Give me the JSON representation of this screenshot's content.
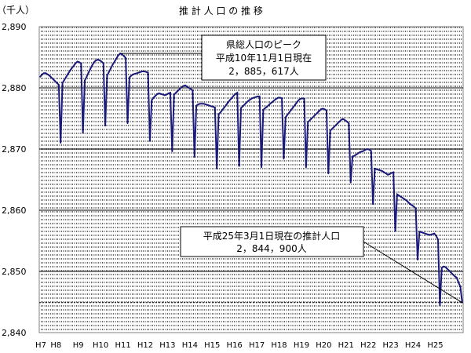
{
  "chart_data": {
    "type": "line",
    "title": "推 計 人 口 の 推 移",
    "ylabel": "（千人）",
    "xlabel": "",
    "ylim": [
      2840,
      2890
    ],
    "yticks": [
      2840,
      2850,
      2860,
      2870,
      2880,
      2890
    ],
    "ytick_labels": [
      "2,840",
      "2,850",
      "2,860",
      "2,870",
      "2,880",
      "2,890"
    ],
    "x_tick_labels": [
      "H7",
      "H8",
      "H9",
      "H10",
      "H11",
      "H12",
      "H13",
      "H14",
      "H15",
      "H16",
      "H17",
      "H18",
      "H19",
      "H20",
      "H21",
      "H22",
      "H23",
      "H24",
      "H25"
    ],
    "grid": true,
    "x_start": "H7-04",
    "x_end": "H25-03",
    "series": [
      {
        "values": [
          2881.8,
          2882.2,
          2882.4,
          2882.4,
          2882.2,
          2882.0,
          2881.7,
          2881.4,
          2881.1,
          2880.8,
          2880.5,
          2871.0,
          2880.8,
          2881.3,
          2881.8,
          2882.3,
          2882.8,
          2883.2,
          2883.6,
          2884.0,
          2884.3,
          2884.2,
          2884.0,
          2872.7,
          2881.2,
          2881.8,
          2882.5,
          2883.1,
          2883.7,
          2884.2,
          2884.5,
          2884.6,
          2884.5,
          2884.3,
          2884.0,
          2873.8,
          2882.0,
          2882.6,
          2883.2,
          2883.8,
          2884.3,
          2884.8,
          2885.3,
          2885.617,
          2885.5,
          2885.2,
          2884.9,
          2874.2,
          2881.7,
          2882.0,
          2882.2,
          2882.3,
          2882.4,
          2882.5,
          2882.6,
          2882.7,
          2882.7,
          2882.6,
          2882.5,
          2871.3,
          2878.0,
          2878.4,
          2878.7,
          2879.0,
          2879.1,
          2879.0,
          2878.9,
          2878.8,
          2878.9,
          2879.1,
          2879.2,
          2869.6,
          2878.9,
          2879.2,
          2879.5,
          2879.8,
          2880.1,
          2880.3,
          2880.4,
          2880.2,
          2880.0,
          2879.8,
          2879.6,
          2868.7,
          2877.1,
          2877.3,
          2877.4,
          2877.4,
          2877.4,
          2877.3,
          2877.2,
          2877.1,
          2877.0,
          2876.9,
          2876.8,
          2866.8,
          2875.7,
          2876.0,
          2876.4,
          2876.8,
          2877.2,
          2877.6,
          2878.0,
          2878.3,
          2878.7,
          2879.0,
          2879.2,
          2867.2,
          2876.7,
          2877.0,
          2877.3,
          2877.6,
          2877.9,
          2878.1,
          2878.3,
          2878.4,
          2878.5,
          2878.6,
          2878.6,
          2867.0,
          2876.4,
          2876.7,
          2876.9,
          2877.2,
          2877.5,
          2877.7,
          2878.0,
          2878.2,
          2878.4,
          2878.4,
          2878.3,
          2868.4,
          2875.2,
          2875.6,
          2876.0,
          2876.4,
          2876.8,
          2877.2,
          2877.6,
          2878.0,
          2878.2,
          2878.3,
          2878.2,
          2867.0,
          2874.4,
          2874.7,
          2875.0,
          2875.3,
          2875.6,
          2875.9,
          2876.2,
          2876.5,
          2876.6,
          2876.5,
          2876.3,
          2866.0,
          2873.0,
          2873.3,
          2873.6,
          2873.9,
          2874.2,
          2874.5,
          2874.8,
          2874.9,
          2874.7,
          2874.5,
          2874.2,
          2864.5,
          2868.8,
          2868.9,
          2869.1,
          2869.3,
          2869.5,
          2869.6,
          2869.7,
          2869.9,
          2870.0,
          2869.9,
          2869.7,
          2861.0,
          2866.8,
          2866.7,
          2866.6,
          2866.5,
          2866.4,
          2866.2,
          2866.0,
          2865.8,
          2865.9,
          2866.1,
          2866.2,
          2856.6,
          2862.6,
          2862.4,
          2862.2,
          2862.0,
          2861.8,
          2861.6,
          2861.3,
          2861.0,
          2860.8,
          2860.6,
          2860.3,
          2851.9,
          2856.5,
          2856.4,
          2856.3,
          2856.2,
          2856.1,
          2856.0,
          2856.0,
          2856.1,
          2856.2,
          2855.8,
          2855.2,
          2844.5,
          2850.6,
          2850.8,
          2850.7,
          2850.4,
          2850.1,
          2849.8,
          2849.5,
          2849.2,
          2849.0,
          2848.2,
          2847.5,
          2844.9
        ]
      }
    ],
    "peak_callout": {
      "line1": "県総人口のピーク",
      "line2": "平成10年11月1日現在",
      "line3": "2，885，617人",
      "x": "H10-11",
      "y": 2885.617
    },
    "latest_callout": {
      "line1": "平成25年3月1日現在の推計人口",
      "line2": "2，844，900人",
      "x": "H25-03",
      "y": 2844.9
    },
    "reference_line": 2844.9,
    "colors": {
      "line": "#1a1a7a",
      "grid": "#000000",
      "axis": "#808080"
    }
  }
}
